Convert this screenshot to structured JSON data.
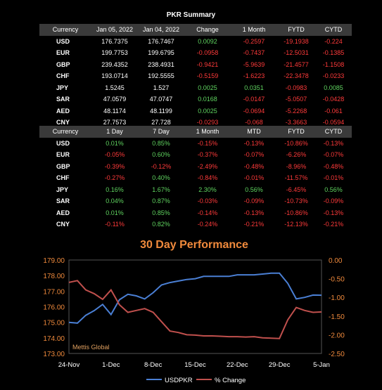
{
  "title": "PKR Summary",
  "table1": {
    "headers": [
      "Currency",
      "Jan 05, 2022",
      "Jan 04, 2022",
      "Change",
      "1 Month",
      "FYTD",
      "CYTD"
    ],
    "rows": [
      {
        "cur": "USD",
        "cells": [
          "176.7375",
          "176.7467",
          "0.0092",
          "-0.2597",
          "-19.1938",
          "-0.224"
        ]
      },
      {
        "cur": "EUR",
        "cells": [
          "199.7753",
          "199.6795",
          "-0.0958",
          "-0.7437",
          "-12.5031",
          "-0.1385"
        ]
      },
      {
        "cur": "GBP",
        "cells": [
          "239.4352",
          "238.4931",
          "-0.9421",
          "-5.9639",
          "-21.4577",
          "-1.1508"
        ]
      },
      {
        "cur": "CHF",
        "cells": [
          "193.0714",
          "192.5555",
          "-0.5159",
          "-1.6223",
          "-22.3478",
          "-0.0233"
        ]
      },
      {
        "cur": "JPY",
        "cells": [
          "1.5245",
          "1.527",
          "0.0025",
          "0.0351",
          "-0.0983",
          "0.0085"
        ]
      },
      {
        "cur": "SAR",
        "cells": [
          "47.0579",
          "47.0747",
          "0.0168",
          "-0.0147",
          "-5.0507",
          "-0.0428"
        ]
      },
      {
        "cur": "AED",
        "cells": [
          "48.1174",
          "48.1199",
          "0.0025",
          "-0.0694",
          "-5.2268",
          "-0.061"
        ]
      },
      {
        "cur": "CNY",
        "cells": [
          "27.7573",
          "27.728",
          "-0.0293",
          "-0.068",
          "-3.3663",
          "-0.0594"
        ]
      }
    ]
  },
  "table2": {
    "headers": [
      "Currency",
      "1 Day",
      "7 Day",
      "1 Month",
      "MTD",
      "FYTD",
      "CYTD"
    ],
    "rows": [
      {
        "cur": "USD",
        "cells": [
          "0.01%",
          "0.85%",
          "-0.15%",
          "-0.13%",
          "-10.86%",
          "-0.13%"
        ]
      },
      {
        "cur": "EUR",
        "cells": [
          "-0.05%",
          "0.60%",
          "-0.37%",
          "-0.07%",
          "-6.26%",
          "-0.07%"
        ]
      },
      {
        "cur": "GBP",
        "cells": [
          "-0.39%",
          "-0.12%",
          "-2.49%",
          "-0.48%",
          "-8.96%",
          "-0.48%"
        ]
      },
      {
        "cur": "CHF",
        "cells": [
          "-0.27%",
          "0.40%",
          "-0.84%",
          "-0.01%",
          "-11.57%",
          "-0.01%"
        ]
      },
      {
        "cur": "JPY",
        "cells": [
          "0.16%",
          "1.67%",
          "2.30%",
          "0.56%",
          "-6.45%",
          "0.56%"
        ]
      },
      {
        "cur": "SAR",
        "cells": [
          "0.04%",
          "0.87%",
          "-0.03%",
          "-0.09%",
          "-10.73%",
          "-0.09%"
        ]
      },
      {
        "cur": "AED",
        "cells": [
          "0.01%",
          "0.85%",
          "-0.14%",
          "-0.13%",
          "-10.86%",
          "-0.13%"
        ]
      },
      {
        "cur": "CNY",
        "cells": [
          "-0.11%",
          "0.82%",
          "-0.24%",
          "-0.21%",
          "-12.13%",
          "-0.21%"
        ]
      }
    ]
  },
  "colors": {
    "positive": "#5fd35f",
    "negative": "#ff3a3a",
    "title": "#f08a3c",
    "usd": "#4a7fd4",
    "pct": "#c0504d",
    "axis": "#f08a3c"
  },
  "chart_data": {
    "type": "line",
    "title": "30 Day Performance",
    "watermark": "Mettis Global",
    "x": [
      "24-Nov",
      "25-Nov",
      "26-Nov",
      "29-Nov",
      "30-Nov",
      "1-Dec",
      "2-Dec",
      "3-Dec",
      "6-Dec",
      "7-Dec",
      "8-Dec",
      "9-Dec",
      "10-Dec",
      "13-Dec",
      "14-Dec",
      "15-Dec",
      "16-Dec",
      "17-Dec",
      "20-Dec",
      "21-Dec",
      "22-Dec",
      "23-Dec",
      "24-Dec",
      "27-Dec",
      "28-Dec",
      "29-Dec",
      "30-Dec",
      "31-Dec",
      "3-Jan",
      "4-Jan",
      "5-Jan"
    ],
    "xtick_labels": [
      "24-Nov",
      "1-Dec",
      "8-Dec",
      "15-Dec",
      "22-Dec",
      "29-Dec",
      "5-Jan"
    ],
    "series": [
      {
        "name": "USDPKR",
        "axis": "left",
        "values": [
          175.0,
          174.95,
          175.45,
          175.75,
          176.15,
          175.5,
          176.45,
          176.8,
          176.7,
          176.5,
          176.9,
          177.4,
          177.55,
          177.65,
          177.75,
          177.8,
          177.95,
          177.95,
          177.95,
          177.95,
          178.05,
          178.05,
          178.05,
          178.1,
          178.15,
          178.15,
          177.5,
          176.5,
          176.6,
          176.75,
          176.74
        ]
      },
      {
        "name": "% Change",
        "axis": "right",
        "values": [
          -0.6,
          -0.55,
          -0.8,
          -0.9,
          -1.05,
          -0.8,
          -1.2,
          -1.4,
          -1.35,
          -1.3,
          -1.4,
          -1.65,
          -1.9,
          -1.94,
          -2.0,
          -2.01,
          -2.03,
          -2.03,
          -2.04,
          -2.05,
          -2.05,
          -2.06,
          -2.05,
          -2.08,
          -2.09,
          -2.1,
          -1.6,
          -1.27,
          -1.35,
          -1.4,
          -1.39
        ]
      }
    ],
    "left_axis": {
      "ylim": [
        173,
        179
      ],
      "ticks": [
        "173.00",
        "174.00",
        "175.00",
        "176.00",
        "177.00",
        "178.00",
        "179.00"
      ]
    },
    "right_axis": {
      "ylim": [
        -2.5,
        0
      ],
      "ticks": [
        "0.00",
        "-0.50",
        "-1.00",
        "-1.50",
        "-2.00",
        "-2.50"
      ]
    },
    "legend": {
      "position": "bottom",
      "items": [
        "USDPKR",
        "% Change"
      ]
    }
  }
}
